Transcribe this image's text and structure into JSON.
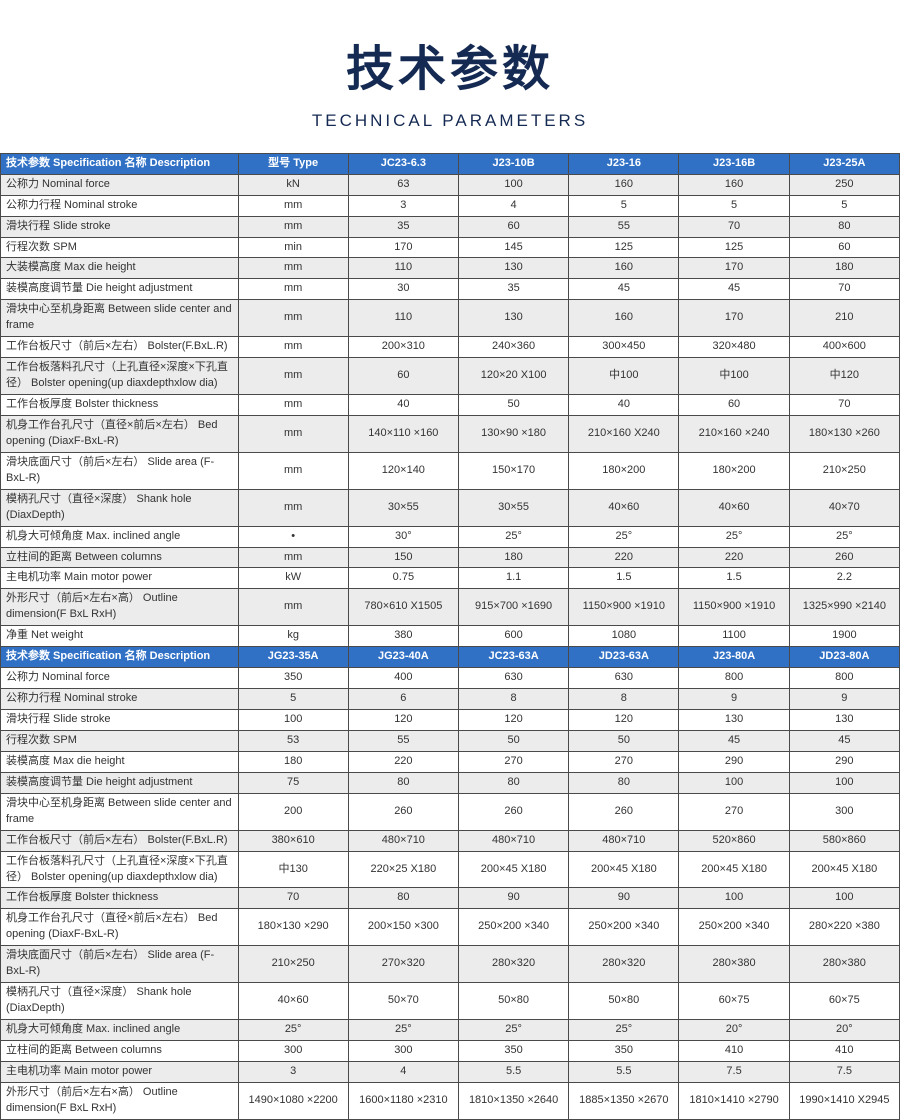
{
  "page": {
    "title": "技术参数",
    "subtitle": "TECHNICAL PARAMETERS"
  },
  "colors": {
    "header_bg": "#3071c6",
    "header_text": "#ffffff",
    "row_alt_bg": "#ececec",
    "border": "#4a4a4a",
    "title_color": "#152a53",
    "body_text": "#333333"
  },
  "table": {
    "sections": [
      {
        "header": {
          "description": "技术参数 Specification 名称 Description",
          "columns": [
            "型号 Type",
            "JC23-6.3",
            "J23-10B",
            "J23-16",
            "J23-16B",
            "J23-25A"
          ]
        },
        "stripe_offset": 0,
        "rows": [
          {
            "label": "公称力 Nominal force",
            "unit": "kN",
            "values": [
              "63",
              "100",
              "160",
              "160",
              "250"
            ]
          },
          {
            "label": "公称力行程 Nominal stroke",
            "unit": "mm",
            "values": [
              "3",
              "4",
              "5",
              "5",
              "5"
            ]
          },
          {
            "label": "滑块行程 Slide stroke",
            "unit": "mm",
            "values": [
              "35",
              "60",
              "55",
              "70",
              "80"
            ]
          },
          {
            "label": "行程次数 SPM",
            "unit": "min",
            "values": [
              "170",
              "145",
              "125",
              "125",
              "60"
            ]
          },
          {
            "label": "大装模高度 Max die height",
            "unit": "mm",
            "values": [
              "110",
              "130",
              "160",
              "170",
              "180"
            ]
          },
          {
            "label": "装模高度调节量 Die height adjustment",
            "unit": "mm",
            "values": [
              "30",
              "35",
              "45",
              "45",
              "70"
            ]
          },
          {
            "label": "滑块中心至机身距离 Between slide center and frame",
            "unit": "mm",
            "values": [
              "110",
              "130",
              "160",
              "170",
              "210"
            ]
          },
          {
            "label": "工作台板尺寸（前后×左右） Bolster(F.BxL.R)",
            "unit": "mm",
            "values": [
              "200×310",
              "240×360",
              "300×450",
              "320×480",
              "400×600"
            ]
          },
          {
            "label": "工作台板落料孔尺寸（上孔直径×深度×下孔直径） Bolster opening(up diaxdepthxlow dia)",
            "unit": "mm",
            "values": [
              "60",
              "120×20 X100",
              "中100",
              "中100",
              "中120"
            ]
          },
          {
            "label": "工作台板厚度 Bolster thickness",
            "unit": "mm",
            "values": [
              "40",
              "50",
              "40",
              "60",
              "70"
            ]
          },
          {
            "label": "机身工作台孔尺寸（直径×前后×左右） Bed opening (DiaxF-BxL-R)",
            "unit": "mm",
            "values": [
              "140×110 ×160",
              "130×90 ×180",
              "210×160 X240",
              "210×160 ×240",
              "180×130 ×260"
            ]
          },
          {
            "label": "滑块底面尺寸（前后×左右） Slide area (F-BxL-R)",
            "unit": "mm",
            "values": [
              "120×140",
              "150×170",
              "180×200",
              "180×200",
              "210×250"
            ]
          },
          {
            "label": "模柄孔尺寸（直径×深度） Shank hole (DiaxDepth)",
            "unit": "mm",
            "values": [
              "30×55",
              "30×55",
              "40×60",
              "40×60",
              "40×70"
            ]
          },
          {
            "label": "机身大可倾角度 Max. inclined angle",
            "unit": "•",
            "values": [
              "30°",
              "25°",
              "25°",
              "25°",
              "25°"
            ]
          },
          {
            "label": "立柱间的距离 Between columns",
            "unit": "mm",
            "values": [
              "150",
              "180",
              "220",
              "220",
              "260"
            ]
          },
          {
            "label": "主电机功率 Main motor power",
            "unit": "kW",
            "values": [
              "0.75",
              "1.1",
              "1.5",
              "1.5",
              "2.2"
            ]
          },
          {
            "label": "外形尺寸（前后×左右×高） Outline dimension(F BxL RxH)",
            "unit": "mm",
            "values": [
              "780×610 X1505",
              "915×700 ×1690",
              "1150×900 ×1910",
              "1150×900 ×1910",
              "1325×990 ×2140"
            ]
          },
          {
            "label": "净重 Net weight",
            "unit": "kg",
            "values": [
              "380",
              "600",
              "1080",
              "1100",
              "1900"
            ]
          }
        ]
      },
      {
        "header": {
          "description": "技术参数 Specification 名称 Description",
          "columns": [
            "JG23-35A",
            "JG23-40A",
            "JC23-63A",
            "JD23-63A",
            "J23-80A",
            "JD23-80A"
          ]
        },
        "stripe_offset": 1,
        "rows": [
          {
            "label": "公称力 Nominal force",
            "values": [
              "350",
              "400",
              "630",
              "630",
              "800",
              "800"
            ]
          },
          {
            "label": "公称力行程 Nominal stroke",
            "values": [
              "5",
              "6",
              "8",
              "8",
              "9",
              "9"
            ]
          },
          {
            "label": "滑块行程 Slide stroke",
            "values": [
              "100",
              "120",
              "120",
              "120",
              "130",
              "130"
            ]
          },
          {
            "label": "行程次数 SPM",
            "values": [
              "53",
              "55",
              "50",
              "50",
              "45",
              "45"
            ]
          },
          {
            "label": "装模高度 Max die height",
            "values": [
              "180",
              "220",
              "270",
              "270",
              "290",
              "290"
            ]
          },
          {
            "label": "装模高度调节量 Die height adjustment",
            "values": [
              "75",
              "80",
              "80",
              "80",
              "100",
              "100"
            ]
          },
          {
            "label": "滑块中心至机身距离 Between slide center and frame",
            "values": [
              "200",
              "260",
              "260",
              "260",
              "270",
              "300"
            ]
          },
          {
            "label": "工作台板尺寸（前后×左右） Bolster(F.BxL.R)",
            "values": [
              "380×610",
              "480×710",
              "480×710",
              "480×710",
              "520×860",
              "580×860"
            ]
          },
          {
            "label": "工作台板落料孔尺寸（上孔直径×深度×下孔直径） Bolster opening(up diaxdepthxlow dia)",
            "values": [
              "中130",
              "220×25 X180",
              "200×45 X180",
              "200×45 X180",
              "200×45 X180",
              "200×45 X180"
            ]
          },
          {
            "label": "工作台板厚度 Bolster thickness",
            "values": [
              "70",
              "80",
              "90",
              "90",
              "100",
              "100"
            ]
          },
          {
            "label": "机身工作台孔尺寸（直径×前后×左右） Bed opening (DiaxF-BxL-R)",
            "values": [
              "180×130 ×290",
              "200×150 ×300",
              "250×200 ×340",
              "250×200 ×340",
              "250×200 ×340",
              "280×220 ×380"
            ]
          },
          {
            "label": "滑块底面尺寸（前后×左右） Slide area (F-BxL-R)",
            "values": [
              "210×250",
              "270×320",
              "280×320",
              "280×320",
              "280×380",
              "280×380"
            ]
          },
          {
            "label": "模柄孔尺寸（直径×深度） Shank hole (DiaxDepth)",
            "values": [
              "40×60",
              "50×70",
              "50×80",
              "50×80",
              "60×75",
              "60×75"
            ]
          },
          {
            "label": "机身大可倾角度 Max. inclined angle",
            "values": [
              "25°",
              "25°",
              "25°",
              "25°",
              "20°",
              "20°"
            ]
          },
          {
            "label": "立柱间的距离 Between columns",
            "values": [
              "300",
              "300",
              "350",
              "350",
              "410",
              "410"
            ]
          },
          {
            "label": "主电机功率 Main motor power",
            "values": [
              "3",
              "4",
              "5.5",
              "5.5",
              "7.5",
              "7.5"
            ]
          },
          {
            "label": "外形尺寸（前后×左右×高） Outline dimension(F BxL RxH)",
            "values": [
              "1490×1080 ×2200",
              "1600×1180 ×2310",
              "1810×1350 ×2640",
              "1885×1350 ×2670",
              "1810×1410 ×2790",
              "1990×1410 X2945"
            ]
          }
        ]
      }
    ]
  }
}
